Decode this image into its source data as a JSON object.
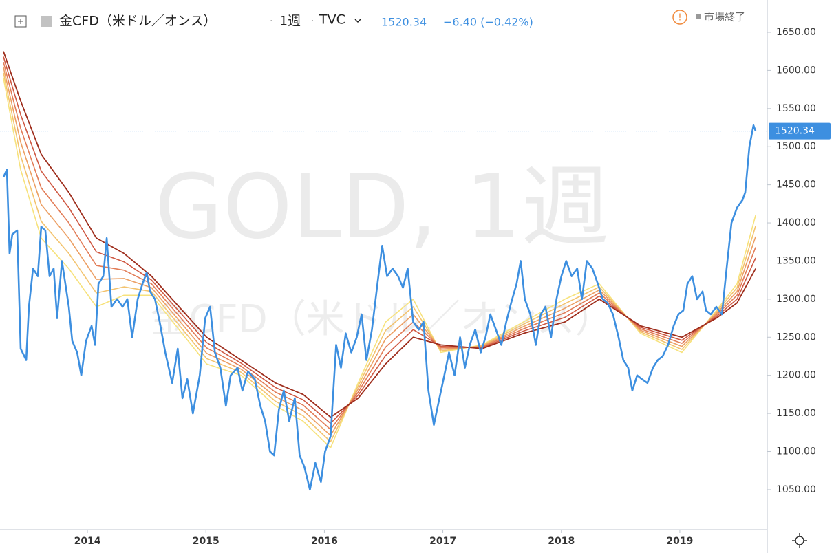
{
  "header": {
    "symbol": "金CFD（米ドル／オンス）",
    "interval": "1週",
    "exchange": "TVC",
    "price": "1520.34",
    "change": "−6.40 (−0.42%)",
    "status": "市場終了"
  },
  "watermark": {
    "main": "GOLD, 1週",
    "sub": "金CFD（米ドル／オンス）"
  },
  "chart_data": {
    "type": "line",
    "xlim": [
      2013.262,
      2019.738
    ],
    "xticks": [
      2014,
      2015,
      2016,
      2017,
      2018,
      2019
    ],
    "ylim": [
      997.6,
      1692.4
    ],
    "yticks": [
      {
        "value": 1050,
        "label": "1050.00"
      },
      {
        "value": 1100,
        "label": "1100.00"
      },
      {
        "value": 1150,
        "label": "1150.00"
      },
      {
        "value": 1200,
        "label": "1200.00"
      },
      {
        "value": 1250,
        "label": "1250.00"
      },
      {
        "value": 1300,
        "label": "1300.00"
      },
      {
        "value": 1350,
        "label": "1350.00"
      },
      {
        "value": 1400,
        "label": "1400.00"
      },
      {
        "value": 1450,
        "label": "1450.00"
      },
      {
        "value": 1500,
        "label": "1500.00"
      },
      {
        "value": 1550,
        "label": "1550.00"
      },
      {
        "value": 1600,
        "label": "1600.00"
      },
      {
        "value": 1650,
        "label": "1650.00"
      }
    ],
    "last_price": 1520.34,
    "last_price_label": "1520.34",
    "grid": false,
    "series": [
      {
        "color": "#f7e27c",
        "width": 1.6,
        "x": [
          2013.291,
          2013.436,
          2013.61,
          2013.843,
          2014.076,
          2014.308,
          2014.541,
          2014.773,
          2015.006,
          2015.297,
          2015.587,
          2015.82,
          2016.052,
          2016.285,
          2016.517,
          2016.75,
          2016.983,
          2017.331,
          2017.68,
          2018.029,
          2018.32,
          2018.669,
          2019.017,
          2019.308,
          2019.483,
          2019.64
        ],
        "values": [
          1590,
          1470,
          1380,
          1340,
          1290,
          1305,
          1305,
          1260,
          1215,
          1200,
          1160,
          1140,
          1105,
          1190,
          1270,
          1300,
          1230,
          1240,
          1270,
          1300,
          1320,
          1255,
          1230,
          1285,
          1320,
          1410
        ]
      },
      {
        "color": "#f3c36e",
        "width": 1.6,
        "x": [
          2013.291,
          2013.436,
          2013.61,
          2013.843,
          2014.076,
          2014.308,
          2014.541,
          2014.773,
          2015.006,
          2015.297,
          2015.587,
          2015.82,
          2016.052,
          2016.285,
          2016.517,
          2016.75,
          2016.983,
          2017.331,
          2017.68,
          2018.029,
          2018.32,
          2018.669,
          2019.017,
          2019.308,
          2019.483,
          2019.64
        ],
        "values": [
          1597,
          1488,
          1402,
          1360,
          1308,
          1316,
          1310,
          1266,
          1222,
          1204,
          1166,
          1147,
          1113,
          1186,
          1259,
          1290,
          1232,
          1239,
          1267,
          1294,
          1316,
          1257,
          1234,
          1283,
          1315,
          1396
        ]
      },
      {
        "color": "#ec9f63",
        "width": 1.6,
        "x": [
          2013.291,
          2013.436,
          2013.61,
          2013.843,
          2014.076,
          2014.308,
          2014.541,
          2014.773,
          2015.006,
          2015.297,
          2015.587,
          2015.82,
          2016.052,
          2016.285,
          2016.517,
          2016.75,
          2016.983,
          2017.331,
          2017.68,
          2018.029,
          2018.32,
          2018.669,
          2019.017,
          2019.308,
          2019.483,
          2019.64
        ],
        "values": [
          1604,
          1506,
          1424,
          1380,
          1326,
          1327,
          1315,
          1272,
          1229,
          1208,
          1172,
          1154,
          1121,
          1182,
          1248,
          1280,
          1234,
          1238,
          1264,
          1288,
          1312,
          1259,
          1238,
          1281,
          1310,
          1382
        ]
      },
      {
        "color": "#e27c57",
        "width": 1.6,
        "x": [
          2013.291,
          2013.436,
          2013.61,
          2013.843,
          2014.076,
          2014.308,
          2014.541,
          2014.773,
          2015.006,
          2015.297,
          2015.587,
          2015.82,
          2016.052,
          2016.285,
          2016.517,
          2016.75,
          2016.983,
          2017.331,
          2017.68,
          2018.029,
          2018.32,
          2018.669,
          2019.017,
          2019.308,
          2019.483,
          2019.64
        ],
        "values": [
          1611,
          1524,
          1446,
          1400,
          1344,
          1338,
          1320,
          1278,
          1236,
          1212,
          1178,
          1161,
          1129,
          1178,
          1237,
          1270,
          1236,
          1237,
          1261,
          1282,
          1308,
          1261,
          1242,
          1279,
          1305,
          1368
        ]
      },
      {
        "color": "#cf5842",
        "width": 1.6,
        "x": [
          2013.291,
          2013.436,
          2013.61,
          2013.843,
          2014.076,
          2014.308,
          2014.541,
          2014.773,
          2015.006,
          2015.297,
          2015.587,
          2015.82,
          2016.052,
          2016.285,
          2016.517,
          2016.75,
          2016.983,
          2017.331,
          2017.68,
          2018.029,
          2018.32,
          2018.669,
          2019.017,
          2019.308,
          2019.483,
          2019.64
        ],
        "values": [
          1618,
          1542,
          1468,
          1420,
          1362,
          1349,
          1325,
          1284,
          1243,
          1216,
          1184,
          1168,
          1137,
          1174,
          1226,
          1260,
          1238,
          1236,
          1258,
          1276,
          1304,
          1263,
          1246,
          1277,
          1300,
          1354
        ]
      },
      {
        "color": "#9e2d1c",
        "width": 1.8,
        "x": [
          2013.291,
          2013.436,
          2013.61,
          2013.843,
          2014.076,
          2014.308,
          2014.541,
          2014.773,
          2015.006,
          2015.297,
          2015.587,
          2015.82,
          2016.052,
          2016.285,
          2016.517,
          2016.75,
          2016.983,
          2017.331,
          2017.68,
          2018.029,
          2018.32,
          2018.669,
          2019.017,
          2019.308,
          2019.483,
          2019.64
        ],
        "values": [
          1625,
          1560,
          1490,
          1440,
          1380,
          1360,
          1330,
          1290,
          1250,
          1220,
          1190,
          1175,
          1145,
          1170,
          1215,
          1250,
          1240,
          1235,
          1255,
          1270,
          1300,
          1265,
          1250,
          1275,
          1295,
          1340
        ]
      },
      {
        "color": "#3d8fe0",
        "width": 2.6,
        "x": [
          2013.291,
          2013.32,
          2013.343,
          2013.366,
          2013.407,
          2013.436,
          2013.483,
          2013.506,
          2013.541,
          2013.581,
          2013.61,
          2013.645,
          2013.68,
          2013.715,
          2013.744,
          2013.785,
          2013.843,
          2013.872,
          2013.913,
          2013.948,
          2013.988,
          2014.035,
          2014.064,
          2014.093,
          2014.134,
          2014.163,
          2014.203,
          2014.25,
          2014.297,
          2014.337,
          2014.378,
          2014.424,
          2014.465,
          2014.5,
          2014.529,
          2014.57,
          2014.61,
          2014.657,
          2014.715,
          2014.762,
          2014.802,
          2014.843,
          2014.89,
          2014.948,
          2014.994,
          2015.035,
          2015.076,
          2015.122,
          2015.169,
          2015.209,
          2015.267,
          2015.308,
          2015.355,
          2015.413,
          2015.459,
          2015.5,
          2015.541,
          2015.576,
          2015.616,
          2015.657,
          2015.703,
          2015.75,
          2015.791,
          2015.831,
          2015.878,
          2015.924,
          2015.971,
          2016.006,
          2016.052,
          2016.099,
          2016.14,
          2016.18,
          2016.227,
          2016.273,
          2016.314,
          2016.355,
          2016.401,
          2016.448,
          2016.488,
          2016.529,
          2016.576,
          2016.622,
          2016.663,
          2016.703,
          2016.75,
          2016.797,
          2016.837,
          2016.878,
          2016.924,
          2016.971,
          2017.012,
          2017.052,
          2017.099,
          2017.145,
          2017.186,
          2017.227,
          2017.273,
          2017.32,
          2017.36,
          2017.401,
          2017.448,
          2017.494,
          2017.535,
          2017.576,
          2017.622,
          2017.657,
          2017.692,
          2017.738,
          2017.785,
          2017.826,
          2017.866,
          2017.913,
          2017.959,
          2018.0,
          2018.041,
          2018.087,
          2018.134,
          2018.174,
          2018.215,
          2018.262,
          2018.308,
          2018.349,
          2018.39,
          2018.436,
          2018.483,
          2018.523,
          2018.564,
          2018.599,
          2018.64,
          2018.68,
          2018.727,
          2018.773,
          2018.814,
          2018.855,
          2018.901,
          2018.948,
          2018.988,
          2019.029,
          2019.064,
          2019.105,
          2019.145,
          2019.192,
          2019.221,
          2019.262,
          2019.308,
          2019.355,
          2019.395,
          2019.436,
          2019.483,
          2019.529,
          2019.552,
          2019.587,
          2019.622,
          2019.64
        ],
        "values": [
          1460,
          1470,
          1360,
          1385,
          1390,
          1235,
          1220,
          1290,
          1340,
          1330,
          1395,
          1390,
          1330,
          1340,
          1275,
          1350,
          1290,
          1245,
          1230,
          1200,
          1245,
          1265,
          1240,
          1320,
          1330,
          1380,
          1290,
          1300,
          1290,
          1300,
          1250,
          1300,
          1320,
          1335,
          1310,
          1300,
          1270,
          1230,
          1190,
          1235,
          1170,
          1195,
          1150,
          1200,
          1275,
          1290,
          1230,
          1210,
          1160,
          1200,
          1210,
          1180,
          1205,
          1195,
          1160,
          1140,
          1100,
          1095,
          1155,
          1180,
          1140,
          1170,
          1095,
          1080,
          1050,
          1085,
          1060,
          1100,
          1120,
          1240,
          1210,
          1255,
          1230,
          1250,
          1280,
          1220,
          1260,
          1320,
          1370,
          1330,
          1340,
          1330,
          1315,
          1340,
          1270,
          1260,
          1270,
          1180,
          1135,
          1170,
          1200,
          1230,
          1200,
          1250,
          1210,
          1240,
          1260,
          1230,
          1250,
          1280,
          1260,
          1240,
          1270,
          1295,
          1320,
          1350,
          1300,
          1280,
          1240,
          1280,
          1290,
          1250,
          1300,
          1330,
          1350,
          1330,
          1340,
          1300,
          1350,
          1340,
          1320,
          1300,
          1295,
          1280,
          1250,
          1220,
          1210,
          1180,
          1200,
          1195,
          1190,
          1210,
          1220,
          1225,
          1240,
          1265,
          1280,
          1285,
          1320,
          1330,
          1300,
          1310,
          1285,
          1280,
          1290,
          1280,
          1340,
          1400,
          1420,
          1430,
          1440,
          1500,
          1528,
          1520.34
        ]
      }
    ]
  }
}
